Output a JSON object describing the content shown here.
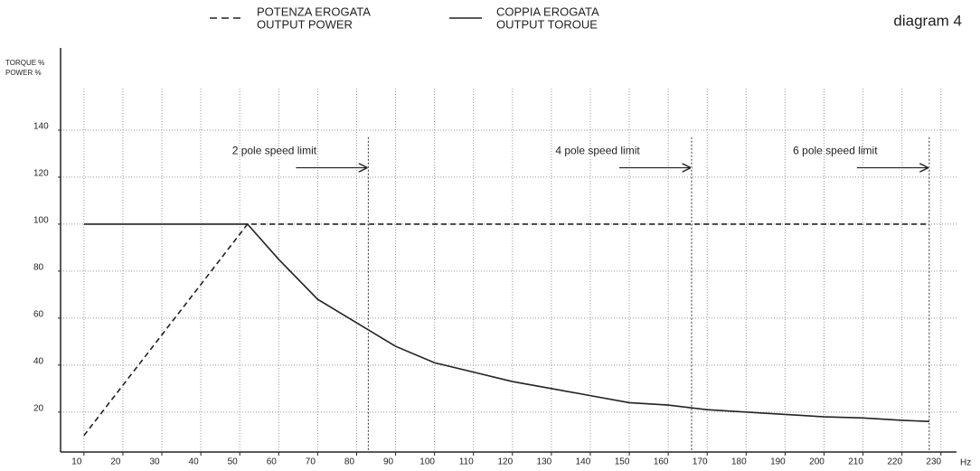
{
  "chart_data": {
    "type": "line",
    "title": "diagram 4",
    "ylabel": [
      "TORQUE %",
      "POWER %"
    ],
    "xlabel": "Hz",
    "xlim": [
      4,
      234
    ],
    "xticks": [
      10,
      20,
      30,
      40,
      50,
      60,
      70,
      80,
      90,
      100,
      110,
      120,
      130,
      140,
      150,
      160,
      170,
      180,
      190,
      200,
      210,
      220,
      230
    ],
    "ylim": [
      3,
      175
    ],
    "yticks": [
      20,
      40,
      60,
      80,
      100,
      120,
      140
    ],
    "grid": true,
    "series": [
      {
        "name": [
          "POTENZA EROGATA",
          "OUTPUT POWER"
        ],
        "color": "#222222",
        "dash": true,
        "x": [
          10,
          52,
          227
        ],
        "values": [
          10,
          100,
          100
        ]
      },
      {
        "name": [
          "COPPIA EROGATA",
          "OUTPUT TOROUE"
        ],
        "color": "#222222",
        "dash": false,
        "x": [
          10,
          52,
          60,
          70,
          80,
          90,
          100,
          110,
          120,
          130,
          140,
          150,
          160,
          170,
          180,
          190,
          200,
          210,
          220,
          227
        ],
        "values": [
          100,
          100,
          85,
          68,
          58,
          48,
          41,
          37,
          33,
          30,
          27,
          24,
          23,
          21,
          20,
          19,
          18,
          17.5,
          16.5,
          16
        ]
      }
    ],
    "annotations": [
      {
        "text": "2 pole speed limit",
        "x": 83
      },
      {
        "text": "4 pole speed limit",
        "x": 166
      },
      {
        "text": "6 pole speed limit",
        "x": 227
      }
    ]
  }
}
